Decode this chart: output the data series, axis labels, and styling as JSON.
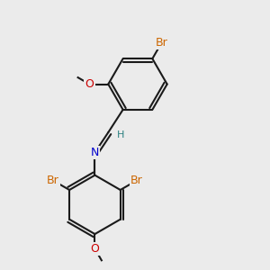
{
  "bg_color": "#ebebeb",
  "bond_color": "#1a1a1a",
  "bond_width": 1.5,
  "atom_colors": {
    "Br": "#cc6600",
    "N": "#0000cc",
    "O": "#cc0000",
    "C": "#1a1a1a",
    "H": "#2a8080"
  },
  "font_size_atom": 9,
  "font_size_small": 8
}
